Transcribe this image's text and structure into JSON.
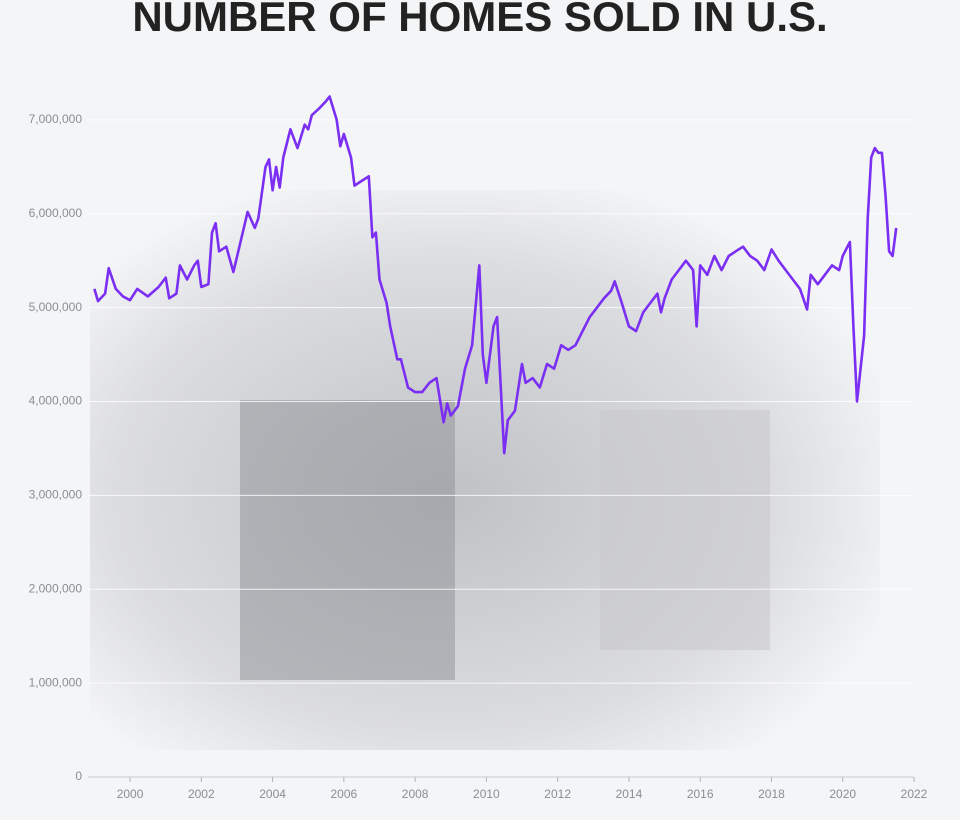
{
  "chart_data": {
    "type": "line",
    "title": "NUMBER OF HOMES SOLD IN U.S.",
    "x": [
      1999.0,
      1999.1,
      1999.3,
      1999.4,
      1999.6,
      1999.8,
      2000.0,
      2000.2,
      2000.5,
      2000.8,
      2001.0,
      2001.1,
      2001.3,
      2001.4,
      2001.6,
      2001.8,
      2001.9,
      2002.0,
      2002.2,
      2002.3,
      2002.4,
      2002.5,
      2002.7,
      2002.9,
      2003.1,
      2003.3,
      2003.5,
      2003.6,
      2003.8,
      2003.9,
      2004.0,
      2004.1,
      2004.2,
      2004.3,
      2004.5,
      2004.7,
      2004.9,
      2005.0,
      2005.1,
      2005.3,
      2005.5,
      2005.6,
      2005.8,
      2005.9,
      2006.0,
      2006.2,
      2006.3,
      2006.5,
      2006.7,
      2006.8,
      2006.9,
      2007.0,
      2007.2,
      2007.3,
      2007.5,
      2007.6,
      2007.8,
      2008.0,
      2008.2,
      2008.4,
      2008.6,
      2008.8,
      2008.9,
      2009.0,
      2009.2,
      2009.4,
      2009.6,
      2009.8,
      2009.9,
      2010.0,
      2010.2,
      2010.3,
      2010.5,
      2010.6,
      2010.8,
      2011.0,
      2011.1,
      2011.3,
      2011.5,
      2011.7,
      2011.9,
      2012.1,
      2012.3,
      2012.5,
      2012.7,
      2012.9,
      2013.1,
      2013.3,
      2013.5,
      2013.6,
      2013.8,
      2014.0,
      2014.2,
      2014.4,
      2014.6,
      2014.8,
      2014.9,
      2015.0,
      2015.2,
      2015.4,
      2015.6,
      2015.8,
      2015.9,
      2016.0,
      2016.2,
      2016.4,
      2016.6,
      2016.8,
      2017.0,
      2017.2,
      2017.4,
      2017.6,
      2017.8,
      2018.0,
      2018.2,
      2018.4,
      2018.6,
      2018.8,
      2019.0,
      2019.1,
      2019.3,
      2019.5,
      2019.7,
      2019.9,
      2020.0,
      2020.2,
      2020.3,
      2020.4,
      2020.6,
      2020.7,
      2020.8,
      2020.9,
      2021.0,
      2021.1,
      2021.2,
      2021.3,
      2021.4,
      2021.5
    ],
    "series": [
      {
        "color": "#7b2ff2",
        "values": [
          5200000,
          5070000,
          5150000,
          5420000,
          5200000,
          5120000,
          5080000,
          5200000,
          5120000,
          5220000,
          5320000,
          5100000,
          5150000,
          5450000,
          5300000,
          5450000,
          5500000,
          5220000,
          5250000,
          5800000,
          5900000,
          5600000,
          5650000,
          5380000,
          5700000,
          6020000,
          5850000,
          5950000,
          6500000,
          6580000,
          6250000,
          6500000,
          6280000,
          6600000,
          6900000,
          6700000,
          6950000,
          6900000,
          7050000,
          7120000,
          7200000,
          7250000,
          7000000,
          6720000,
          6850000,
          6600000,
          6300000,
          6350000,
          6400000,
          5750000,
          5800000,
          5300000,
          5050000,
          4800000,
          4450000,
          4450000,
          4150000,
          4100000,
          4100000,
          4200000,
          4250000,
          3780000,
          3980000,
          3850000,
          3950000,
          4350000,
          4600000,
          5450000,
          4500000,
          4200000,
          4800000,
          4900000,
          3450000,
          3800000,
          3900000,
          4400000,
          4200000,
          4250000,
          4150000,
          4400000,
          4350000,
          4600000,
          4550000,
          4600000,
          4750000,
          4900000,
          5000000,
          5100000,
          5180000,
          5280000,
          5050000,
          4800000,
          4750000,
          4950000,
          5050000,
          5150000,
          4950000,
          5100000,
          5300000,
          5400000,
          5500000,
          5400000,
          4800000,
          5450000,
          5350000,
          5550000,
          5400000,
          5550000,
          5600000,
          5650000,
          5550000,
          5500000,
          5400000,
          5620000,
          5500000,
          5400000,
          5300000,
          5200000,
          4980000,
          5350000,
          5250000,
          5350000,
          5450000,
          5400000,
          5550000,
          5700000,
          4800000,
          4000000,
          4700000,
          5950000,
          6600000,
          6700000,
          6650000,
          6650000,
          6200000,
          5600000,
          5550000,
          5850000
        ]
      }
    ],
    "xlim": [
      1998.82,
      2022
    ],
    "xticks": [
      2000,
      2002,
      2004,
      2006,
      2008,
      2010,
      2012,
      2014,
      2016,
      2018,
      2020,
      2022
    ],
    "ylim": [
      0,
      7500000
    ],
    "yticks": [
      0,
      {
        "value": 1000000,
        "label": "1,000,000"
      },
      {
        "value": 2000000,
        "label": "2,000,000"
      },
      {
        "value": 3000000,
        "label": "3,000,000"
      },
      {
        "value": 4000000,
        "label": "4,000,000"
      },
      {
        "value": 5000000,
        "label": "5,000,000"
      },
      {
        "value": 6000000,
        "label": "6,000,000"
      },
      {
        "value": 7000000,
        "label": "7,000,000"
      }
    ],
    "grid": true
  }
}
